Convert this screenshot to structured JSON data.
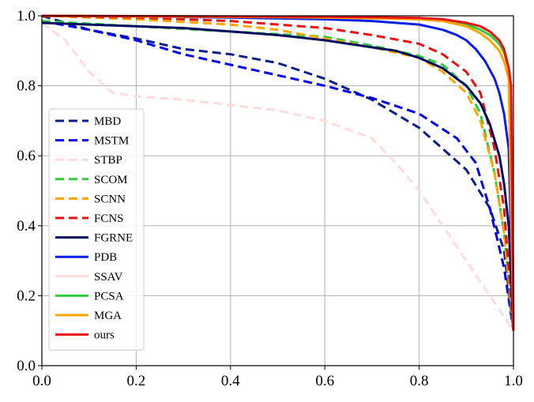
{
  "chart_data": {
    "type": "line",
    "title": "",
    "xlabel": "",
    "ylabel": "",
    "xlim": [
      0.0,
      1.0
    ],
    "ylim": [
      0.0,
      1.0
    ],
    "xticks": [
      "0.0",
      "0.2",
      "0.4",
      "0.6",
      "0.8",
      "1.0"
    ],
    "yticks": [
      "0.0",
      "0.2",
      "0.4",
      "0.6",
      "0.8",
      "1.0"
    ],
    "grid": true,
    "legend_position": "center-left",
    "series": [
      {
        "name": "MBD",
        "color": "#0b1f8a",
        "dash": true,
        "x": [
          0.0,
          0.1,
          0.2,
          0.3,
          0.4,
          0.5,
          0.6,
          0.7,
          0.8,
          0.9,
          0.95,
          0.98,
          1.0
        ],
        "y": [
          1.0,
          0.96,
          0.935,
          0.905,
          0.89,
          0.865,
          0.82,
          0.76,
          0.68,
          0.56,
          0.45,
          0.33,
          0.1
        ]
      },
      {
        "name": "MSTM",
        "color": "#0000ee",
        "dash": true,
        "x": [
          0.0,
          0.1,
          0.2,
          0.3,
          0.4,
          0.5,
          0.6,
          0.7,
          0.8,
          0.88,
          0.92,
          0.95,
          0.98,
          1.0
        ],
        "y": [
          0.985,
          0.96,
          0.93,
          0.89,
          0.86,
          0.83,
          0.8,
          0.765,
          0.72,
          0.65,
          0.58,
          0.45,
          0.28,
          0.1
        ]
      },
      {
        "name": "STBP",
        "color": "#ffdcdc",
        "dash": true,
        "x": [
          0.0,
          0.05,
          0.1,
          0.15,
          0.2,
          0.3,
          0.4,
          0.5,
          0.6,
          0.7,
          0.75,
          0.8,
          0.85,
          0.9,
          0.95,
          1.0
        ],
        "y": [
          0.98,
          0.93,
          0.84,
          0.78,
          0.77,
          0.76,
          0.745,
          0.73,
          0.7,
          0.65,
          0.58,
          0.5,
          0.4,
          0.3,
          0.2,
          0.1
        ]
      },
      {
        "name": "SCOM",
        "color": "#2ecc40",
        "dash": true,
        "x": [
          0.0,
          0.2,
          0.4,
          0.6,
          0.7,
          0.8,
          0.85,
          0.9,
          0.93,
          0.96,
          0.98,
          1.0
        ],
        "y": [
          0.985,
          0.97,
          0.955,
          0.94,
          0.915,
          0.885,
          0.86,
          0.8,
          0.72,
          0.55,
          0.38,
          0.1
        ]
      },
      {
        "name": "SCNN",
        "color": "#ffa500",
        "dash": true,
        "x": [
          0.0,
          0.2,
          0.4,
          0.5,
          0.6,
          0.7,
          0.8,
          0.85,
          0.9,
          0.93,
          0.96,
          0.98,
          1.0
        ],
        "y": [
          1.0,
          0.99,
          0.975,
          0.96,
          0.935,
          0.91,
          0.88,
          0.84,
          0.78,
          0.7,
          0.55,
          0.38,
          0.1
        ]
      },
      {
        "name": "FCNS",
        "color": "#e81010",
        "dash": true,
        "x": [
          0.0,
          0.2,
          0.4,
          0.6,
          0.7,
          0.8,
          0.85,
          0.9,
          0.93,
          0.96,
          0.98,
          1.0
        ],
        "y": [
          1.0,
          0.995,
          0.985,
          0.965,
          0.945,
          0.92,
          0.89,
          0.84,
          0.78,
          0.62,
          0.45,
          0.1
        ]
      },
      {
        "name": "FGRNE",
        "color": "#000d5e",
        "dash": false,
        "x": [
          0.0,
          0.1,
          0.2,
          0.3,
          0.4,
          0.5,
          0.6,
          0.7,
          0.75,
          0.8,
          0.85,
          0.9,
          0.93,
          0.95,
          0.97,
          0.98,
          0.99,
          1.0
        ],
        "y": [
          0.98,
          0.975,
          0.97,
          0.965,
          0.955,
          0.945,
          0.93,
          0.91,
          0.9,
          0.88,
          0.85,
          0.8,
          0.75,
          0.69,
          0.6,
          0.52,
          0.4,
          0.1
        ]
      },
      {
        "name": "PDB",
        "color": "#0a1fe8",
        "dash": false,
        "x": [
          0.0,
          0.2,
          0.4,
          0.6,
          0.7,
          0.8,
          0.85,
          0.88,
          0.9,
          0.92,
          0.94,
          0.96,
          0.97,
          0.98,
          0.99,
          1.0
        ],
        "y": [
          1.0,
          0.998,
          0.995,
          0.99,
          0.985,
          0.975,
          0.96,
          0.945,
          0.93,
          0.905,
          0.87,
          0.82,
          0.78,
          0.72,
          0.62,
          0.1
        ]
      },
      {
        "name": "SSAV",
        "color": "#ffdcdc",
        "dash": false,
        "x": [
          0.0,
          0.1,
          0.2,
          0.3
        ],
        "y": [
          1.0,
          0.999,
          0.998,
          0.997
        ]
      },
      {
        "name": "PCSA",
        "color": "#2ecc40",
        "dash": false,
        "x": [
          0.0,
          0.2,
          0.4,
          0.6,
          0.7,
          0.8,
          0.85,
          0.9,
          0.93,
          0.95,
          0.97,
          0.98,
          0.99,
          0.995,
          1.0
        ],
        "y": [
          1.0,
          0.998,
          0.997,
          0.995,
          0.993,
          0.99,
          0.985,
          0.975,
          0.96,
          0.945,
          0.92,
          0.895,
          0.85,
          0.8,
          0.1
        ]
      },
      {
        "name": "MGA",
        "color": "#ffa500",
        "dash": false,
        "x": [
          0.0,
          0.2,
          0.4,
          0.6,
          0.7,
          0.8,
          0.85,
          0.9,
          0.93,
          0.95,
          0.97,
          0.98,
          0.99,
          1.0
        ],
        "y": [
          1.0,
          0.998,
          0.997,
          0.995,
          0.993,
          0.99,
          0.985,
          0.97,
          0.95,
          0.93,
          0.9,
          0.87,
          0.82,
          0.1
        ]
      },
      {
        "name": "ours",
        "color": "#ee1111",
        "dash": false,
        "x": [
          0.0,
          0.2,
          0.4,
          0.6,
          0.7,
          0.8,
          0.85,
          0.9,
          0.93,
          0.95,
          0.97,
          0.98,
          0.99,
          0.995,
          1.0
        ],
        "y": [
          1.0,
          0.999,
          0.998,
          0.997,
          0.996,
          0.994,
          0.99,
          0.98,
          0.97,
          0.955,
          0.93,
          0.905,
          0.85,
          0.8,
          0.1
        ]
      }
    ]
  }
}
